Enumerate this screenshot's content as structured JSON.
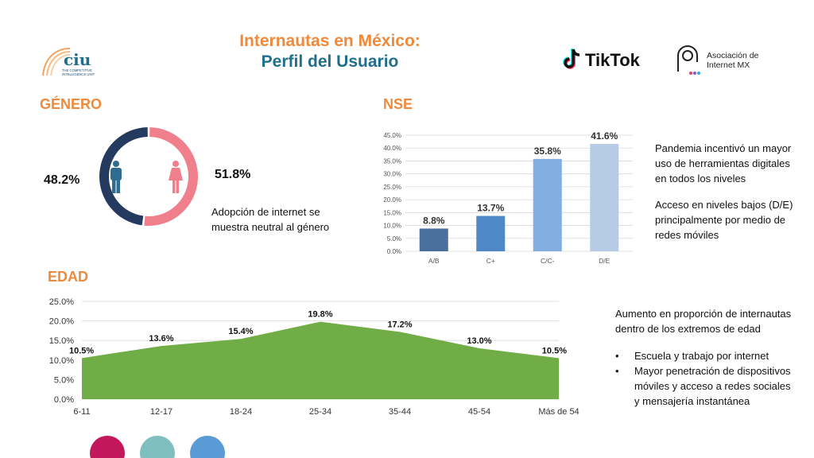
{
  "header": {
    "title_line1": "Internautas en México:",
    "title_line2": "Perfil del Usuario",
    "logos": {
      "ciu": {
        "text": "ciu",
        "subtitle": "THE COMPETITIVE\nINTELLIGENCE UNIT"
      },
      "tiktok": {
        "text": "TikTok"
      },
      "amx": {
        "text": "Asociación de\nInternet MX"
      }
    }
  },
  "genero": {
    "heading": "GÉNERO",
    "male_pct": "48.2%",
    "female_pct": "51.8%",
    "note": "Adopción de internet se muestra neutral al género",
    "colors": {
      "male": "#243a5e",
      "female": "#f07f8c",
      "male_icon": "#2e6d8f",
      "female_icon": "#f07f8c"
    }
  },
  "nse": {
    "heading": "NSE",
    "note1": "Pandemia incentivó un mayor uso de herramientas digitales en todos los niveles",
    "note2": "Acceso en niveles bajos (D/E) principalmente por medio de redes móviles"
  },
  "edad": {
    "heading": "EDAD",
    "intro": "Aumento en proporción de internautas dentro de los extremos de edad",
    "bullets": [
      "Escuela y trabajo por internet",
      "Mayor penetración de dispositivos móviles y acceso a redes sociales y mensajería instantánea"
    ]
  },
  "chart_data": [
    {
      "type": "pie",
      "categories": [
        "Hombres",
        "Mujeres"
      ],
      "values": [
        48.2,
        51.8
      ],
      "colors": [
        "#243a5e",
        "#f07f8c"
      ]
    },
    {
      "type": "bar",
      "categories": [
        "A/B",
        "C+",
        "C/C-",
        "D/E"
      ],
      "values": [
        8.8,
        13.7,
        35.8,
        41.6
      ],
      "value_labels": [
        "8.8%",
        "13.7%",
        "35.8%",
        "41.6%"
      ],
      "ylim": [
        0,
        45
      ],
      "yticks": [
        "0.0%",
        "5.0%",
        "10.0%",
        "15.0%",
        "20.0%",
        "25.0%",
        "30.0%",
        "35.0%",
        "40.0%",
        "45.0%"
      ],
      "colors": [
        "#4a6f9e",
        "#4f88c6",
        "#83afe0",
        "#b5cbe6"
      ],
      "grid": true
    },
    {
      "type": "area",
      "categories": [
        "6-11",
        "12-17",
        "18-24",
        "25-34",
        "35-44",
        "45-54",
        "Más de 54"
      ],
      "values": [
        10.5,
        13.6,
        15.4,
        19.8,
        17.2,
        13.0,
        10.5
      ],
      "value_labels": [
        "10.5%",
        "13.6%",
        "15.4%",
        "19.8%",
        "17.2%",
        "13.0%",
        "10.5%"
      ],
      "ylim": [
        0,
        25
      ],
      "yticks": [
        "0.0%",
        "5.0%",
        "10.0%",
        "15.0%",
        "20.0%",
        "25.0%"
      ],
      "color": "#70ad47",
      "grid": true
    }
  ],
  "decor": {
    "circle_colors": [
      "#c2185b",
      "#7fbfbf",
      "#5b9bd5"
    ]
  }
}
